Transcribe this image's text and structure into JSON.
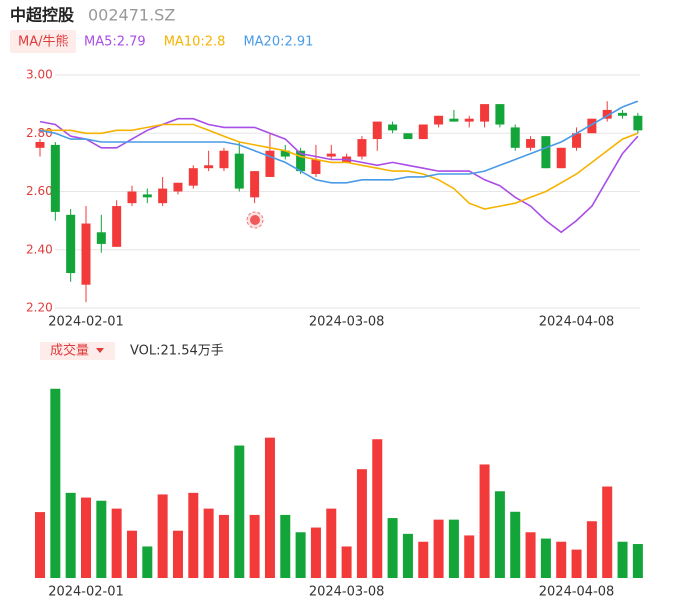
{
  "chart_data": [
    {
      "type": "candlestick",
      "title": "中超控股",
      "subtitle": "002471.SZ",
      "legend_title": "MA/牛熊",
      "categories": [
        null,
        null,
        null,
        "2024-02-01",
        null,
        null,
        null,
        null,
        null,
        null,
        null,
        null,
        null,
        null,
        null,
        null,
        null,
        null,
        null,
        null,
        "2024-03-08",
        null,
        null,
        null,
        null,
        null,
        null,
        null,
        null,
        null,
        null,
        null,
        null,
        null,
        null,
        "2024-04-08",
        null,
        null,
        null,
        null
      ],
      "open": [
        2.75,
        2.76,
        2.52,
        2.28,
        2.46,
        2.41,
        2.56,
        2.59,
        2.56,
        2.6,
        2.62,
        2.68,
        2.68,
        2.73,
        2.58,
        2.65,
        2.74,
        2.74,
        2.66,
        2.72,
        2.7,
        2.72,
        2.78,
        2.83,
        2.8,
        2.78,
        2.83,
        2.85,
        2.84,
        2.84,
        2.9,
        2.82,
        2.75,
        2.79,
        2.68,
        2.75,
        2.8,
        2.85,
        2.87,
        2.86
      ],
      "high": [
        2.78,
        2.77,
        2.54,
        2.55,
        2.52,
        2.57,
        2.62,
        2.61,
        2.65,
        2.63,
        2.69,
        2.74,
        2.75,
        2.77,
        2.67,
        2.8,
        2.76,
        2.75,
        2.76,
        2.76,
        2.73,
        2.79,
        2.84,
        2.84,
        2.8,
        2.83,
        2.86,
        2.88,
        2.86,
        2.9,
        2.9,
        2.83,
        2.79,
        2.79,
        2.75,
        2.82,
        2.85,
        2.91,
        2.88,
        2.87
      ],
      "low": [
        2.72,
        2.5,
        2.29,
        2.22,
        2.39,
        2.41,
        2.55,
        2.56,
        2.55,
        2.59,
        2.61,
        2.67,
        2.67,
        2.6,
        2.56,
        2.65,
        2.71,
        2.66,
        2.65,
        2.71,
        2.7,
        2.71,
        2.74,
        2.8,
        2.78,
        2.78,
        2.82,
        2.84,
        2.82,
        2.82,
        2.82,
        2.74,
        2.74,
        2.68,
        2.68,
        2.74,
        2.8,
        2.84,
        2.85,
        2.8
      ],
      "close": [
        2.77,
        2.53,
        2.32,
        2.49,
        2.42,
        2.55,
        2.6,
        2.58,
        2.61,
        2.63,
        2.68,
        2.69,
        2.74,
        2.61,
        2.67,
        2.74,
        2.72,
        2.67,
        2.71,
        2.73,
        2.72,
        2.78,
        2.84,
        2.81,
        2.78,
        2.83,
        2.86,
        2.84,
        2.85,
        2.9,
        2.83,
        2.75,
        2.78,
        2.68,
        2.75,
        2.8,
        2.85,
        2.88,
        2.86,
        2.81
      ],
      "up_color": "#f23a3a",
      "down_color": "#13a43a",
      "ylim": [
        2.2,
        3.0
      ],
      "yticks": [
        {
          "value": 2.2,
          "label": "2.20"
        },
        {
          "value": 2.4,
          "label": "2.40"
        },
        {
          "value": 2.6,
          "label": "2.60"
        },
        {
          "value": 2.8,
          "label": "2.80"
        },
        {
          "value": 3.0,
          "label": "3.00"
        }
      ],
      "grid": true,
      "series": [
        {
          "name": "MA5:2.79",
          "color": "#a94ee6",
          "values": [
            2.84,
            2.83,
            2.79,
            2.78,
            2.75,
            2.75,
            2.78,
            2.81,
            2.83,
            2.85,
            2.85,
            2.83,
            2.82,
            2.82,
            2.82,
            2.8,
            2.78,
            2.73,
            2.72,
            2.71,
            2.71,
            2.7,
            2.69,
            2.7,
            2.69,
            2.68,
            2.67,
            2.67,
            2.67,
            2.64,
            2.62,
            2.58,
            2.55,
            2.5,
            2.46,
            2.5,
            2.55,
            2.64,
            2.73,
            2.79
          ]
        },
        {
          "name": "MA10:2.8",
          "color": "#f5b300",
          "values": [
            2.81,
            2.81,
            2.81,
            2.8,
            2.8,
            2.81,
            2.81,
            2.82,
            2.83,
            2.83,
            2.83,
            2.81,
            2.79,
            2.77,
            2.76,
            2.75,
            2.74,
            2.72,
            2.71,
            2.7,
            2.7,
            2.69,
            2.68,
            2.67,
            2.67,
            2.66,
            2.64,
            2.61,
            2.56,
            2.54,
            2.55,
            2.56,
            2.58,
            2.6,
            2.63,
            2.66,
            2.7,
            2.74,
            2.78,
            2.8
          ]
        },
        {
          "name": "MA20:2.91",
          "color": "#4a9be6",
          "values": [
            2.81,
            2.8,
            2.78,
            2.78,
            2.77,
            2.77,
            2.77,
            2.77,
            2.77,
            2.77,
            2.77,
            2.77,
            2.77,
            2.76,
            2.74,
            2.72,
            2.7,
            2.67,
            2.64,
            2.63,
            2.63,
            2.64,
            2.64,
            2.64,
            2.65,
            2.65,
            2.66,
            2.66,
            2.66,
            2.67,
            2.69,
            2.71,
            2.73,
            2.75,
            2.77,
            2.8,
            2.83,
            2.86,
            2.89,
            2.91
          ]
        }
      ]
    },
    {
      "type": "bar",
      "title": "成交量",
      "label": "VOL:21.54万手",
      "categories": [
        null,
        null,
        null,
        "2024-02-01",
        null,
        null,
        null,
        null,
        null,
        null,
        null,
        null,
        null,
        null,
        null,
        null,
        null,
        null,
        null,
        null,
        "2024-03-08",
        null,
        null,
        null,
        null,
        null,
        null,
        null,
        null,
        null,
        null,
        null,
        null,
        null,
        null,
        "2024-04-08",
        null,
        null,
        null,
        null
      ],
      "values": [
        41.8,
        120,
        54,
        51,
        49,
        44,
        30,
        20,
        53,
        30,
        54,
        44,
        40,
        84,
        40,
        89,
        40,
        29,
        32,
        44,
        20,
        69,
        88,
        38,
        28,
        23,
        37,
        37,
        27,
        72,
        55,
        42,
        29,
        25,
        23,
        18,
        36,
        58,
        23,
        21.54
      ],
      "ylim": [
        0,
        130
      ]
    }
  ]
}
